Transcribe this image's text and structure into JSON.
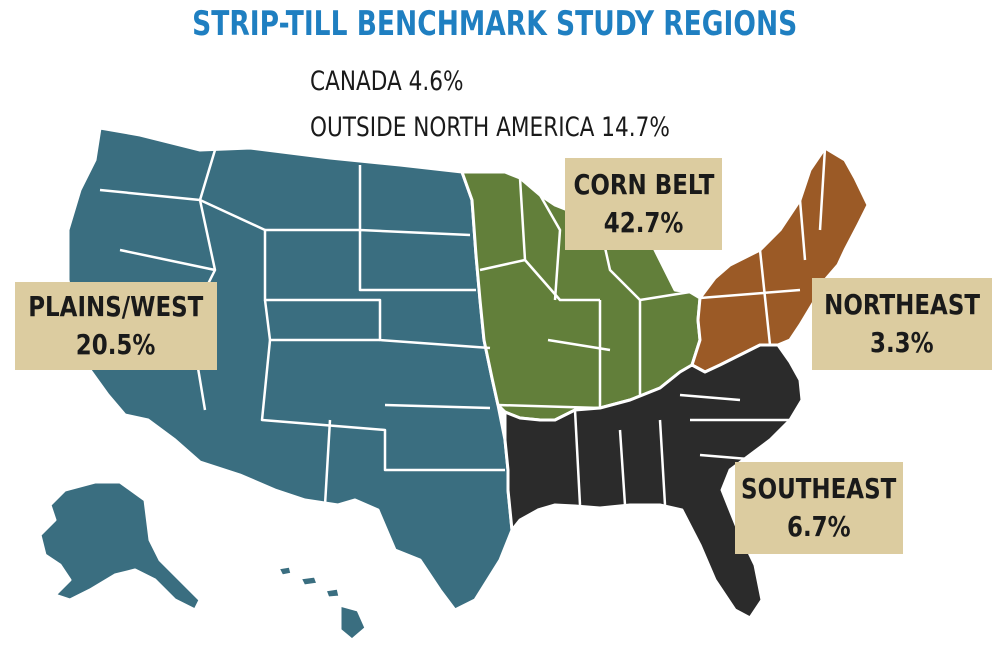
{
  "title": "STRIP-TILL BENCHMARK STUDY REGIONS",
  "notes": {
    "canada": "CANADA 4.6%",
    "outside": "OUTSIDE NORTH AMERICA 14.7%"
  },
  "regions": [
    {
      "id": "plains-west",
      "name": "PLAINS/WEST",
      "share": "20.5%",
      "color": "#3a6e80"
    },
    {
      "id": "corn-belt",
      "name": "CORN BELT",
      "share": "42.7%",
      "color": "#627f3a"
    },
    {
      "id": "northeast",
      "name": "NORTHEAST",
      "share": "3.3%",
      "color": "#9b5a26"
    },
    {
      "id": "southeast",
      "name": "SOUTHEAST",
      "share": "6.7%",
      "color": "#2b2b2b"
    }
  ],
  "colors": {
    "title": "#1f7fc1",
    "label_box": "#dccca0",
    "border": "#ffffff"
  }
}
